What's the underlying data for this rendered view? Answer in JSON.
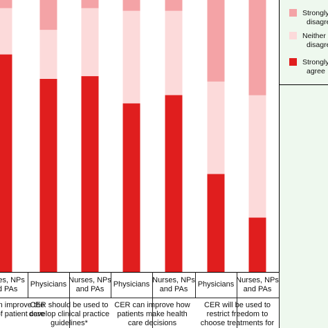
{
  "chart_data": {
    "type": "bar",
    "stacked": true,
    "ylim": [
      0,
      100
    ],
    "grid": false,
    "legend_placement": "right",
    "categories": [
      {
        "label": "Nurses, NPs and PAs",
        "group": 0
      },
      {
        "label": "Physicians",
        "group": 1
      },
      {
        "label": "Nurses, NPs and PAs",
        "group": 1
      },
      {
        "label": "Physicians",
        "group": 2
      },
      {
        "label": "Nurses, NPs and PAs",
        "group": 2
      },
      {
        "label": "Physicians",
        "group": 3
      },
      {
        "label": "Nurses, NPs and PAs",
        "group": 3
      }
    ],
    "groups": [
      "CER can improve the quality of patient care",
      "CER should be used to develop clinical practice guidelines*",
      "CER can improve how patients make health care decisions",
      "CER will be used to restrict freedom to choose treatments for"
    ],
    "series": [
      {
        "name": "Strongly agree",
        "color": "#e01e1e",
        "values": [
          80,
          71,
          72,
          62,
          65,
          36,
          20
        ]
      },
      {
        "name": "Neither",
        "color": "#fcdada",
        "values": [
          17,
          18,
          25,
          34,
          31,
          34,
          45
        ]
      },
      {
        "name": "Strongly disagree",
        "color": "#f4a3a6",
        "values": [
          3,
          11,
          3,
          4,
          4,
          30,
          35
        ]
      }
    ]
  },
  "legend": {
    "items": [
      {
        "lines": [
          "Strongly",
          "disagree"
        ],
        "color": "#f4a3a6"
      },
      {
        "lines": [
          "Neither",
          "disagree"
        ],
        "color": "#fcdada"
      },
      {
        "lines": [
          "Strongly",
          "agree"
        ],
        "color": "#e01e1e"
      }
    ]
  },
  "category_lines": [
    [
      "Nurses, NPs",
      "and PAs"
    ],
    [
      "Physicians"
    ],
    [
      "Nurses, NPs",
      "and PAs"
    ],
    [
      "Physicians"
    ],
    [
      "Nurses, NPs",
      "and PAs"
    ],
    [
      "Physicians"
    ],
    [
      "Nurses, NPs",
      "and PAs"
    ]
  ],
  "group_lines": [
    [
      "CER can improve the",
      "quality of patient care"
    ],
    [
      "CER should be used to",
      "develop clinical practice",
      "guidelines*"
    ],
    [
      "CER can improve how",
      "patients make health",
      "care decisions"
    ],
    [
      "CER will be used to",
      "restrict freedom to",
      "choose treatments for"
    ]
  ]
}
